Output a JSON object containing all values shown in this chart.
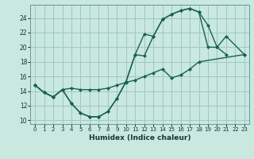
{
  "xlabel": "Humidex (Indice chaleur)",
  "bg_color": "#c8e8e0",
  "grid_color": "#a0c8c0",
  "line_color": "#1a6055",
  "xlim": [
    -0.5,
    23.5
  ],
  "ylim": [
    9.5,
    25.8
  ],
  "xticks": [
    0,
    1,
    2,
    3,
    4,
    5,
    6,
    7,
    8,
    9,
    10,
    11,
    12,
    13,
    14,
    15,
    16,
    17,
    18,
    19,
    20,
    21,
    22,
    23
  ],
  "yticks": [
    10,
    12,
    14,
    16,
    18,
    20,
    22,
    24
  ],
  "line1_x": [
    0,
    1,
    2,
    3,
    4,
    5,
    6,
    7,
    8,
    9,
    10,
    11,
    12,
    13,
    14,
    15,
    16,
    17,
    18,
    19,
    20,
    21
  ],
  "line1_y": [
    14.8,
    13.8,
    13.2,
    14.2,
    12.3,
    11.0,
    10.5,
    10.5,
    11.2,
    13.0,
    15.3,
    19.0,
    18.8,
    21.5,
    23.8,
    24.5,
    25.0,
    25.3,
    24.8,
    20.0,
    20.0,
    19.0
  ],
  "line2_x": [
    0,
    1,
    2,
    3,
    4,
    5,
    6,
    7,
    8,
    9,
    10,
    11,
    12,
    13,
    14,
    15,
    16,
    17,
    18,
    23
  ],
  "line2_y": [
    14.8,
    13.8,
    13.2,
    14.2,
    14.4,
    14.2,
    14.2,
    14.2,
    14.4,
    14.8,
    15.2,
    15.5,
    16.0,
    16.5,
    17.0,
    15.8,
    16.2,
    17.0,
    18.0,
    19.0
  ],
  "line3_x": [
    0,
    1,
    2,
    3,
    4,
    5,
    6,
    7,
    8,
    9,
    10,
    11,
    12,
    13,
    14,
    15,
    16,
    17,
    18,
    19,
    20,
    21,
    23
  ],
  "line3_y": [
    14.8,
    13.8,
    13.2,
    14.2,
    12.3,
    11.0,
    10.5,
    10.5,
    11.2,
    13.0,
    15.3,
    19.0,
    21.8,
    21.5,
    23.8,
    24.5,
    25.0,
    25.3,
    24.8,
    23.0,
    20.0,
    21.5,
    19.0
  ]
}
